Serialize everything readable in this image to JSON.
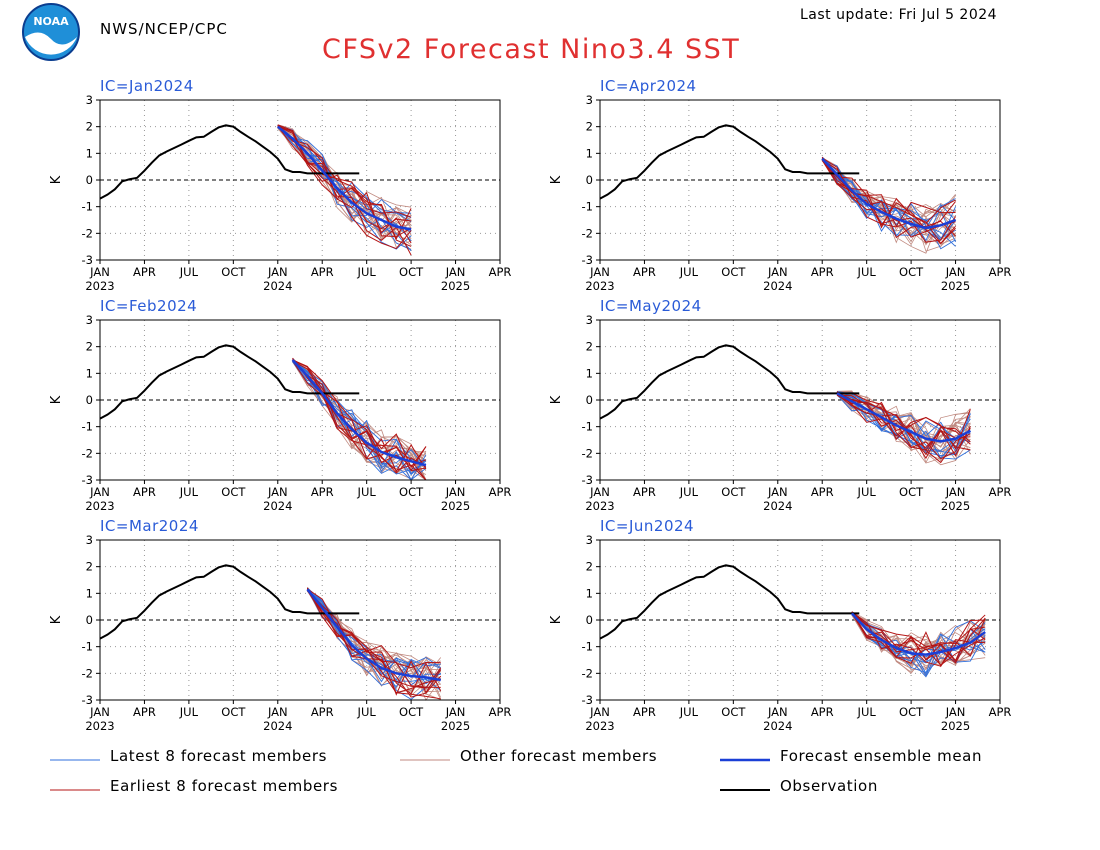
{
  "header": {
    "org": "NWS/NCEP/CPC",
    "last_update": "Last update: Fri Jul 5 2024",
    "title": "CFSv2 Forecast Nino3.4 SST",
    "logo_text": "NOAA"
  },
  "colors": {
    "latest": "#2f6fdc",
    "other": "#c08a80",
    "earliest": "#b41414",
    "mean": "#1a3fd6",
    "obs": "#000000",
    "title": "#e03030",
    "ic_label": "#2a5bd7"
  },
  "chart_data": {
    "type": "line",
    "ylabel": "K",
    "ylim": [
      -3,
      3
    ],
    "yticks": [
      "3",
      "2",
      "1",
      "0",
      "-1",
      "-2",
      "-3"
    ],
    "x_start": "2023-01",
    "x_end": "2025-04",
    "xtick_months": [
      "JAN",
      "APR",
      "JUL",
      "OCT",
      "JAN",
      "APR",
      "JUL",
      "OCT",
      "JAN",
      "APR"
    ],
    "xtick_years": [
      "2023",
      "",
      "",
      "",
      "2024",
      "",
      "",
      "",
      "2025",
      ""
    ],
    "grid": "dotted",
    "zero_line": "dashed",
    "observation": {
      "name": "Observation",
      "x_months": [
        0,
        0.5,
        1,
        1.5,
        2,
        2.5,
        3,
        3.5,
        4,
        4.5,
        5,
        5.5,
        6,
        6.5,
        7,
        7.5,
        8,
        8.5,
        9,
        9.5,
        10,
        10.5,
        11,
        11.5,
        12,
        12.5,
        13,
        13.5,
        14,
        14.5,
        15,
        15.5,
        16,
        16.5,
        17,
        17.5
      ],
      "values": [
        -0.7,
        -0.55,
        -0.35,
        -0.05,
        0.03,
        0.08,
        0.35,
        0.65,
        0.92,
        1.07,
        1.2,
        1.33,
        1.47,
        1.6,
        1.62,
        1.8,
        1.97,
        2.05,
        2.0,
        1.8,
        1.62,
        1.45,
        1.25,
        1.05,
        0.8,
        0.4,
        0.3,
        0.3,
        0.25,
        0.25,
        0.25,
        0.25,
        0.25,
        0.25,
        0.25,
        0.25
      ]
    },
    "panels": [
      {
        "label": "IC=Jan2024",
        "start": 12,
        "obs_end": 17,
        "mean": [
          2.0,
          1.55,
          1.0,
          0.35,
          -0.3,
          -0.85,
          -1.25,
          -1.5,
          -1.75,
          -1.85
        ]
      },
      {
        "label": "IC=Apr2024",
        "start": 15,
        "obs_end": 18,
        "mean": [
          0.8,
          0.2,
          -0.4,
          -0.9,
          -1.2,
          -1.45,
          -1.65,
          -1.8,
          -1.7,
          -1.5
        ]
      },
      {
        "label": "IC=Feb2024",
        "start": 13,
        "obs_end": 17,
        "mean": [
          1.5,
          0.9,
          0.25,
          -0.5,
          -1.1,
          -1.6,
          -1.95,
          -2.15,
          -2.3,
          -2.45
        ]
      },
      {
        "label": "IC=May2024",
        "start": 16,
        "obs_end": 17,
        "mean": [
          0.25,
          -0.05,
          -0.35,
          -0.65,
          -0.95,
          -1.2,
          -1.45,
          -1.55,
          -1.45,
          -1.15
        ]
      },
      {
        "label": "IC=Mar2024",
        "start": 14,
        "obs_end": 17,
        "mean": [
          1.15,
          0.45,
          -0.25,
          -0.95,
          -1.45,
          -1.8,
          -2.0,
          -2.1,
          -2.15,
          -2.25
        ]
      },
      {
        "label": "IC=Jun2024",
        "start": 17,
        "obs_end": 17,
        "mean": [
          0.25,
          -0.35,
          -0.75,
          -1.05,
          -1.25,
          -1.3,
          -1.2,
          -1.05,
          -0.85,
          -0.45
        ]
      }
    ],
    "legend": [
      {
        "key": "latest",
        "label": "Latest 8 forecast members"
      },
      {
        "key": "other",
        "label": "Other forecast members"
      },
      {
        "key": "mean",
        "label": "Forecast ensemble mean"
      },
      {
        "key": "earliest",
        "label": "Earliest 8 forecast members"
      },
      {
        "key": "obs",
        "label": "Observation"
      }
    ]
  }
}
